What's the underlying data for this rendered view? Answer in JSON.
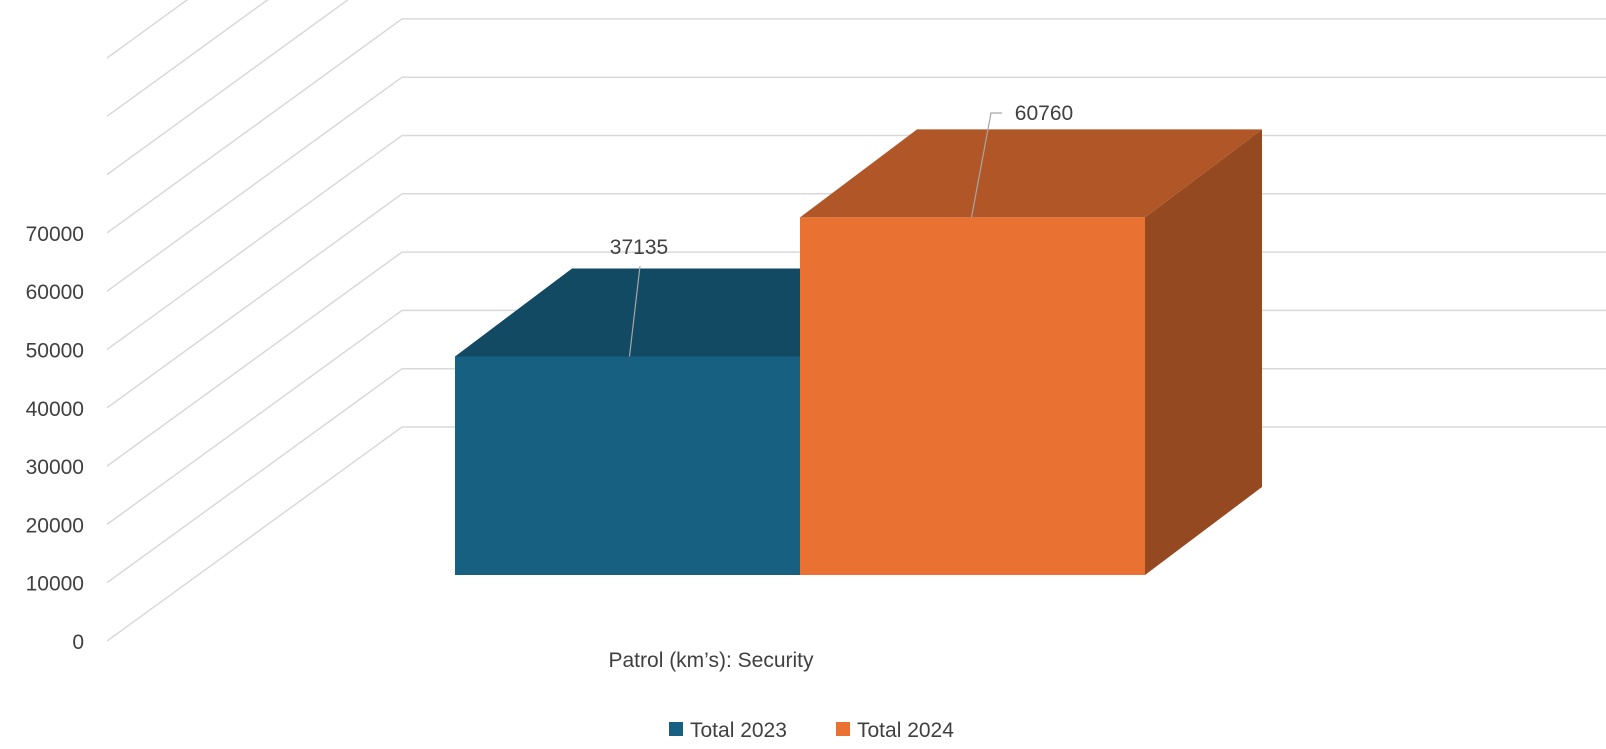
{
  "chart_data": {
    "type": "bar",
    "categories": [
      "Patrol (km’s): Security"
    ],
    "series": [
      {
        "name": "Total 2023",
        "values": [
          37135
        ],
        "color": "#186082"
      },
      {
        "name": "Total 2024",
        "values": [
          60760
        ],
        "color": "#E97233"
      }
    ],
    "ylim": [
      0,
      70000
    ],
    "yticks": [
      "0",
      "10000",
      "20000",
      "30000",
      "40000",
      "50000",
      "60000",
      "70000"
    ],
    "data_labels": [
      "37135",
      "60760"
    ],
    "grid": true,
    "legend": "bottom",
    "style": "3d-clustered-column"
  }
}
